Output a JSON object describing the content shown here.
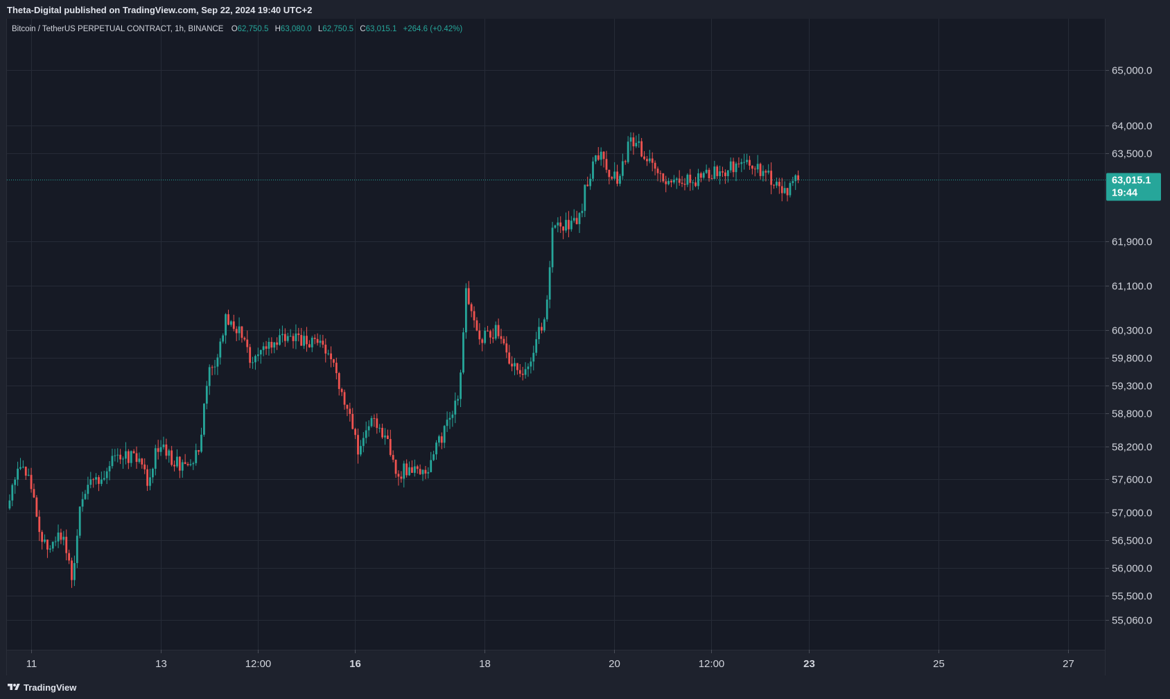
{
  "header": {
    "published": "Theta-Digital published on TradingView.com, Sep 22, 2024 19:40 UTC+2"
  },
  "legend": {
    "symbol": "Bitcoin / TetherUS PERPETUAL CONTRACT, 1h, BINANCE",
    "o_label": "O",
    "o_value": "62,750.5",
    "h_label": "H",
    "h_value": "63,080.0",
    "l_label": "L",
    "l_value": "62,750.5",
    "c_label": "C",
    "c_value": "63,015.1",
    "change": "+264.6 (+0.42%)"
  },
  "last_price": {
    "value": "63,015.1",
    "countdown": "19:44",
    "color": "#26a69a"
  },
  "footer": {
    "brand": "TradingView"
  },
  "colors": {
    "background": "#161a25",
    "up": "#26a69a",
    "down": "#ef5350",
    "grid": "#262b37"
  },
  "chart_data": {
    "type": "candlestick",
    "interval": "1h",
    "y_tick_labels": [
      "65,000.0",
      "64,000.0",
      "63,500.0",
      "61,900.0",
      "61,100.0",
      "60,300.0",
      "59,800.0",
      "59,300.0",
      "58,800.0",
      "58,200.0",
      "57,600.0",
      "57,000.0",
      "56,500.0",
      "56,000.0",
      "55,500.0",
      "55,060.0"
    ],
    "y_ticks": [
      65000,
      64000,
      63500,
      61900,
      61100,
      60300,
      59800,
      59300,
      58800,
      58200,
      57600,
      57000,
      56500,
      56000,
      55500,
      55060
    ],
    "x_tick_labels": [
      {
        "label": "11",
        "day": 11,
        "bold": false
      },
      {
        "label": "13",
        "day": 13,
        "bold": false
      },
      {
        "label": "12:00",
        "day": 14.5,
        "bold": false
      },
      {
        "label": "16",
        "day": 16,
        "bold": true
      },
      {
        "label": "18",
        "day": 18,
        "bold": false
      },
      {
        "label": "20",
        "day": 20,
        "bold": false
      },
      {
        "label": "12:00",
        "day": 21.5,
        "bold": false
      },
      {
        "label": "23",
        "day": 23,
        "bold": true
      },
      {
        "label": "25",
        "day": 25,
        "bold": false
      },
      {
        "label": "27",
        "day": 27,
        "bold": false
      }
    ],
    "x_range_days": [
      10.63,
      27.58
    ],
    "y_range": [
      54520,
      65930
    ],
    "anchors": [
      {
        "d": 10.63,
        "p": 57000
      },
      {
        "d": 10.85,
        "p": 57900
      },
      {
        "d": 11.0,
        "p": 57600
      },
      {
        "d": 11.25,
        "p": 56400
      },
      {
        "d": 11.55,
        "p": 56600
      },
      {
        "d": 11.68,
        "p": 55650
      },
      {
        "d": 11.78,
        "p": 56900
      },
      {
        "d": 11.95,
        "p": 57700
      },
      {
        "d": 12.15,
        "p": 57500
      },
      {
        "d": 12.35,
        "p": 58050
      },
      {
        "d": 12.7,
        "p": 58000
      },
      {
        "d": 12.85,
        "p": 57550
      },
      {
        "d": 13.0,
        "p": 58200
      },
      {
        "d": 13.3,
        "p": 57900
      },
      {
        "d": 13.5,
        "p": 57800
      },
      {
        "d": 13.65,
        "p": 58150
      },
      {
        "d": 13.75,
        "p": 59400
      },
      {
        "d": 13.95,
        "p": 59900
      },
      {
        "d": 14.05,
        "p": 60550
      },
      {
        "d": 14.25,
        "p": 60300
      },
      {
        "d": 14.4,
        "p": 59800
      },
      {
        "d": 14.6,
        "p": 59950
      },
      {
        "d": 14.9,
        "p": 60100
      },
      {
        "d": 15.1,
        "p": 60200
      },
      {
        "d": 15.3,
        "p": 60050
      },
      {
        "d": 15.5,
        "p": 60150
      },
      {
        "d": 15.7,
        "p": 59700
      },
      {
        "d": 15.95,
        "p": 58750
      },
      {
        "d": 16.1,
        "p": 58100
      },
      {
        "d": 16.3,
        "p": 58700
      },
      {
        "d": 16.55,
        "p": 58300
      },
      {
        "d": 16.7,
        "p": 57700
      },
      {
        "d": 16.9,
        "p": 57850
      },
      {
        "d": 17.1,
        "p": 57700
      },
      {
        "d": 17.3,
        "p": 58150
      },
      {
        "d": 17.5,
        "p": 58700
      },
      {
        "d": 17.65,
        "p": 59150
      },
      {
        "d": 17.75,
        "p": 60950
      },
      {
        "d": 17.95,
        "p": 60150
      },
      {
        "d": 18.25,
        "p": 60300
      },
      {
        "d": 18.5,
        "p": 59600
      },
      {
        "d": 18.7,
        "p": 59450
      },
      {
        "d": 18.85,
        "p": 60200
      },
      {
        "d": 18.98,
        "p": 60600
      },
      {
        "d": 19.1,
        "p": 62200
      },
      {
        "d": 19.3,
        "p": 62200
      },
      {
        "d": 19.5,
        "p": 62300
      },
      {
        "d": 19.62,
        "p": 63000
      },
      {
        "d": 19.85,
        "p": 63600
      },
      {
        "d": 19.95,
        "p": 63200
      },
      {
        "d": 20.1,
        "p": 63000
      },
      {
        "d": 20.3,
        "p": 63750
      },
      {
        "d": 20.5,
        "p": 63500
      },
      {
        "d": 20.7,
        "p": 63100
      },
      {
        "d": 20.9,
        "p": 62850
      },
      {
        "d": 21.1,
        "p": 63050
      },
      {
        "d": 21.3,
        "p": 63000
      },
      {
        "d": 21.6,
        "p": 63150
      },
      {
        "d": 21.9,
        "p": 63250
      },
      {
        "d": 22.15,
        "p": 63300
      },
      {
        "d": 22.35,
        "p": 63150
      },
      {
        "d": 22.55,
        "p": 62950
      },
      {
        "d": 22.7,
        "p": 62750
      },
      {
        "d": 22.85,
        "p": 63015
      }
    ],
    "last_close": 63015.1
  }
}
